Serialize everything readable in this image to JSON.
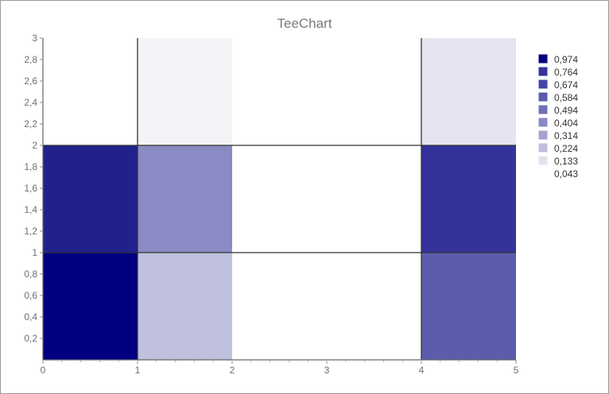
{
  "chart_data": {
    "type": "heatmap",
    "title": "TeeChart",
    "xlabel": "",
    "ylabel": "",
    "xlim": [
      0,
      5
    ],
    "ylim": [
      0,
      3
    ],
    "x_ticks": [
      "0",
      "1",
      "2",
      "3",
      "4",
      "5"
    ],
    "y_ticks": [
      "0,2",
      "0,4",
      "0,6",
      "0,8",
      "1",
      "1,2",
      "1,4",
      "1,6",
      "1,8",
      "2",
      "2,2",
      "2,4",
      "2,6",
      "2,8",
      "3"
    ],
    "grid": false,
    "legend_position": "right",
    "legend": [
      {
        "label": "0,974",
        "color": "#000080"
      },
      {
        "label": "0,764",
        "color": "#33339b"
      },
      {
        "label": "0,674",
        "color": "#4545a4"
      },
      {
        "label": "0,584",
        "color": "#5a5aae"
      },
      {
        "label": "0,494",
        "color": "#7070b9"
      },
      {
        "label": "0,404",
        "color": "#8989c5"
      },
      {
        "label": "0,314",
        "color": "#a3a3d2"
      },
      {
        "label": "0,224",
        "color": "#bebedf"
      },
      {
        "label": "0,133",
        "color": "#e2e2ef"
      },
      {
        "label": "0,043",
        "color": "#ffffff"
      }
    ],
    "cells": [
      {
        "x0": 0,
        "x1": 1,
        "y0": 0,
        "y1": 1,
        "value": 0.974,
        "color": "#000080"
      },
      {
        "x0": 1,
        "x1": 2,
        "y0": 0,
        "y1": 1,
        "value": 0.224,
        "color": "#c0c0df"
      },
      {
        "x0": 2,
        "x1": 4,
        "y0": 0,
        "y1": 1,
        "value": 0.043,
        "color": "#ffffff"
      },
      {
        "x0": 4,
        "x1": 5,
        "y0": 0,
        "y1": 1,
        "value": 0.584,
        "color": "#5c5cad"
      },
      {
        "x0": 0,
        "x1": 1,
        "y0": 1,
        "y1": 2,
        "value": 0.764,
        "color": "#21218d"
      },
      {
        "x0": 1,
        "x1": 2,
        "y0": 1,
        "y1": 2,
        "value": 0.404,
        "color": "#8a8ac4"
      },
      {
        "x0": 2,
        "x1": 4,
        "y0": 1,
        "y1": 2,
        "value": 0.043,
        "color": "#ffffff"
      },
      {
        "x0": 4,
        "x1": 5,
        "y0": 1,
        "y1": 2,
        "value": 0.764,
        "color": "#33339b"
      },
      {
        "x0": 0,
        "x1": 1,
        "y0": 2,
        "y1": 3,
        "value": 0.043,
        "color": "#ffffff"
      },
      {
        "x0": 1,
        "x1": 2,
        "y0": 2,
        "y1": 3,
        "value": 0.133,
        "color": "#f3f3f8"
      },
      {
        "x0": 2,
        "x1": 4,
        "y0": 2,
        "y1": 3,
        "value": 0.043,
        "color": "#ffffff"
      },
      {
        "x0": 4,
        "x1": 5,
        "y0": 2,
        "y1": 3,
        "value": 0.133,
        "color": "#e5e5f1"
      }
    ],
    "border_lines": [
      {
        "x": [
          0,
          5
        ],
        "y": [
          1,
          1
        ]
      },
      {
        "x": [
          0,
          5
        ],
        "y": [
          2,
          2
        ]
      },
      {
        "x": [
          1,
          1
        ],
        "y": [
          0,
          3
        ]
      },
      {
        "x": [
          4,
          4
        ],
        "y": [
          0,
          3
        ]
      }
    ]
  }
}
